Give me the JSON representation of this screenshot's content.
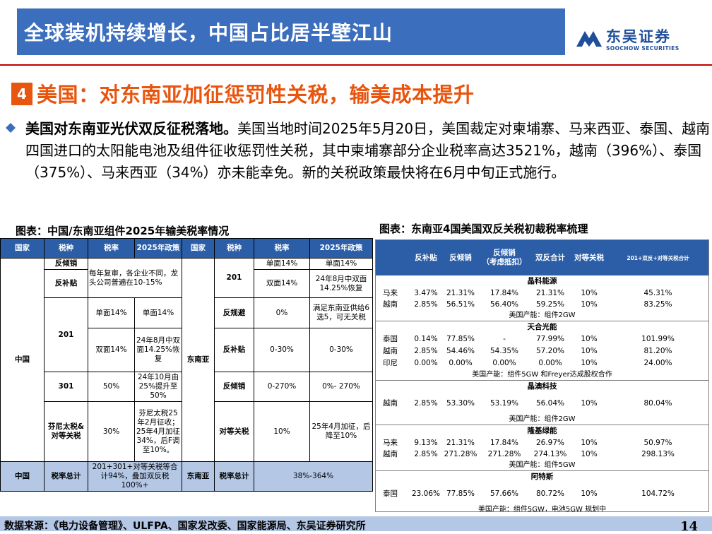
{
  "header": {
    "title": "全球装机持续增长，中国占比居半壁江山",
    "logo_cn": "东吴证券",
    "logo_en": "SOOCHOW SECURITIES"
  },
  "section": {
    "number": "4",
    "title": "美国：对东南亚加征惩罚性关税，输美成本提升"
  },
  "paragraph": {
    "lead": "美国对东南亚光伏双反征税落地。",
    "body": "美国当地时间2025年5月20日，美国裁定对柬埔寨、马来西亚、泰国、越南四国进口的太阳能电池及组件征收惩罚性关税，其中柬埔寨部分企业税率高达3521%，越南（396%）、泰国（375%）、马来西亚（34%）亦未能幸免。新的关税政策最快将在6月中旬正式施行。"
  },
  "table1": {
    "caption": "图表：中国/东南亚组件2025年输美税率情况",
    "headers": [
      "国家",
      "税种",
      "税率",
      "2025年政策",
      "国家",
      "税种",
      "税率",
      "2025年政策"
    ],
    "cells": {
      "china": "中国",
      "fanqingxiao": "反倾销",
      "fanbutie": "反补贴",
      "fanbutie_policy": "每年复审，各企业不同，龙头公司普遍在10-15%",
      "s201": "201",
      "s201_single_rate": "单面14%",
      "s201_single_policy": "单面14%",
      "s201_double_rate": "双面14%",
      "s201_double_policy": "24年8月中双面14.25%恢复",
      "s301": "301",
      "s301_rate": "50%",
      "s301_policy": "24年10月由25%提升至50%",
      "fentanyl": "芬尼太税&对等关税",
      "fentanyl_rate": "30%",
      "fentanyl_policy": "芬尼太税25年2月征收；25年4月加征34%，后F调至10%。",
      "sea": "东南亚",
      "r_201": "201",
      "r_201_single_rate": "单面14%",
      "r_201_single_policy": "单面14%",
      "r_201_double_rate": "双面14%",
      "r_201_double_policy": "24年8月中双面14.25%恢复",
      "r_fanguibi": "反规避",
      "r_fanguibi_rate": "0%",
      "r_fanguibi_policy": "满足东南亚供给6选5，可无关税",
      "r_fanbutie": "反补贴",
      "r_fanbutie_rate": "0-30%",
      "r_fanbutie_policy": "0-30%",
      "r_fanqingxiao": "反倾销",
      "r_fanqingxiao_rate": "0-270%",
      "r_fanqingxiao_policy": "0%- 270%",
      "r_duideng": "对等关税",
      "r_duideng_rate": "10%",
      "r_duideng_policy": "25年4月加征，后降至10%",
      "total_label": "税率总计",
      "china_total": "201+301+对等关税等合计94%，叠加双反税100%+",
      "sea_total": "38%-364%"
    }
  },
  "table2": {
    "caption": "图表：东南亚4国美国双反关税初裁税率梳理",
    "headers": [
      "反补贴",
      "反倾销",
      "反倾销\n（考虑抵扣）",
      "双反合计",
      "对等关税",
      "201+双反+对等关税合计"
    ],
    "groups": [
      {
        "name": "晶科能源",
        "rows": [
          {
            "country": "马来",
            "cvd": "3.47%",
            "ad": "21.31%",
            "ad_net": "17.84%",
            "sum": "21.31%",
            "recip": "10%",
            "total": "45.31%"
          },
          {
            "country": "越南",
            "cvd": "2.85%",
            "ad": "56.51%",
            "ad_net": "56.40%",
            "sum": "59.25%",
            "recip": "10%",
            "total": "83.25%"
          }
        ],
        "note": "美国产能：组件2GW"
      },
      {
        "name": "天合光能",
        "rows": [
          {
            "country": "泰国",
            "cvd": "0.14%",
            "ad": "77.85%",
            "ad_net": "-",
            "sum": "77.99%",
            "recip": "10%",
            "total": "101.99%"
          },
          {
            "country": "越南",
            "cvd": "2.85%",
            "ad": "54.46%",
            "ad_net": "54.35%",
            "sum": "57.20%",
            "recip": "10%",
            "total": "81.20%"
          },
          {
            "country": "印尼",
            "cvd": "0.00%",
            "ad": "0.00%",
            "ad_net": "0.00%",
            "sum": "0.00%",
            "recip": "10%",
            "total": "24.00%"
          }
        ],
        "note": "美国产能：组件5GW 和Freyer达成股权合作"
      },
      {
        "name": "晶澳科技",
        "rows": [
          {
            "country": "越南",
            "cvd": "2.85%",
            "ad": "53.30%",
            "ad_net": "53.19%",
            "sum": "56.04%",
            "recip": "10%",
            "total": "80.04%"
          }
        ],
        "note": "美国产能：组件2GW"
      },
      {
        "name": "隆基绿能",
        "rows": [
          {
            "country": "马来",
            "cvd": "9.13%",
            "ad": "21.31%",
            "ad_net": "17.84%",
            "sum": "26.97%",
            "recip": "10%",
            "total": "50.97%"
          },
          {
            "country": "越南",
            "cvd": "2.85%",
            "ad": "271.28%",
            "ad_net": "271.28%",
            "sum": "274.13%",
            "recip": "10%",
            "total": "298.13%"
          }
        ],
        "note": "美国产能：组件5GW"
      },
      {
        "name": "阿特斯",
        "rows": [
          {
            "country": "泰国",
            "cvd": "23.06%",
            "ad": "77.85%",
            "ad_net": "57.66%",
            "sum": "80.72%",
            "recip": "10%",
            "total": "104.72%"
          }
        ],
        "note": "美国产能：组件5GW，电池5GW 规划中"
      }
    ]
  },
  "footer": {
    "source": "数据来源：《电力设备管理》、ULFPA、国家发改委、国家能源局、东吴证券研究所",
    "page": "14"
  },
  "colors": {
    "banner": "#3c6ebe",
    "accent": "#e8550e",
    "header_blue": "#2c5ea8",
    "light_blue": "#b4c8e6"
  }
}
